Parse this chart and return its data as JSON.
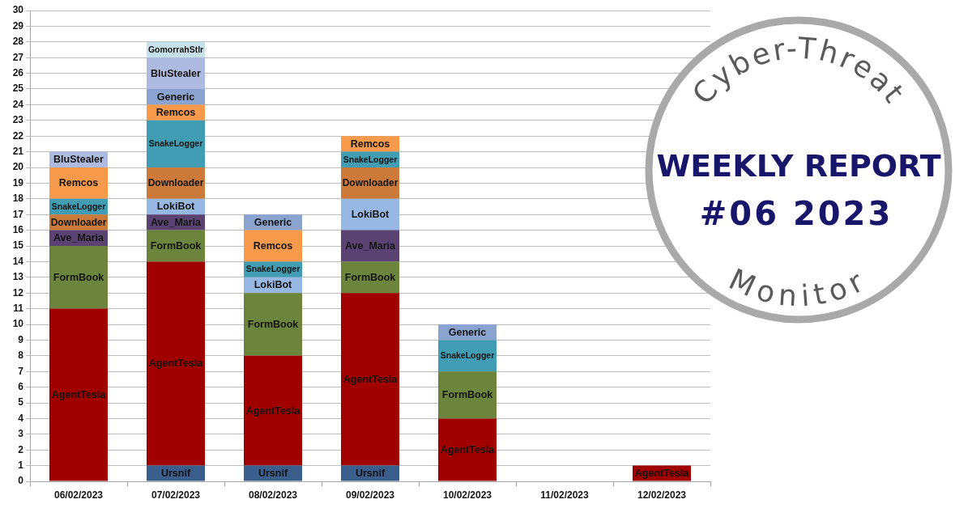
{
  "chart_data": {
    "type": "bar",
    "title": "WEEKLY REPORT",
    "subtitle": "#06 2023",
    "annotations": [
      "Cyber-Threat",
      "Monitor"
    ],
    "categories": [
      "06/02/2023",
      "07/02/2023",
      "08/02/2023",
      "09/02/2023",
      "10/02/2023",
      "11/02/2023",
      "12/02/2023"
    ],
    "stacked": true,
    "ylim": [
      0,
      30
    ],
    "yticks": [
      0,
      1,
      2,
      3,
      4,
      5,
      6,
      7,
      8,
      9,
      10,
      11,
      12,
      13,
      14,
      15,
      16,
      17,
      18,
      19,
      20,
      21,
      22,
      23,
      24,
      25,
      26,
      27,
      28,
      29,
      30
    ],
    "grid": "y",
    "legend": false,
    "series": [
      {
        "name": "Ursnif",
        "color": "#3b5e8c",
        "values": [
          null,
          1,
          1,
          1,
          null,
          null,
          null
        ]
      },
      {
        "name": "AgentTesla",
        "color": "#a00000",
        "values": [
          11,
          13,
          7,
          11,
          4,
          null,
          1
        ]
      },
      {
        "name": "FormBook",
        "color": "#6c843c",
        "values": [
          4,
          2,
          4,
          2,
          3,
          null,
          null
        ]
      },
      {
        "name": "Ave_Maria",
        "color": "#5a4272",
        "values": [
          1,
          1,
          null,
          2,
          null,
          null,
          null
        ]
      },
      {
        "name": "LokiBot",
        "color": "#98b8e4",
        "values": [
          null,
          1,
          1,
          2,
          null,
          null,
          null
        ]
      },
      {
        "name": "Downloader",
        "color": "#cc7a3a",
        "values": [
          1,
          2,
          null,
          2,
          null,
          null,
          null
        ]
      },
      {
        "name": "SnakeLogger",
        "color": "#409db4",
        "values": [
          1,
          3,
          1,
          1,
          2,
          null,
          null
        ]
      },
      {
        "name": "Remcos",
        "color": "#f79a4c",
        "values": [
          2,
          1,
          2,
          1,
          null,
          null,
          null
        ]
      },
      {
        "name": "Generic",
        "color": "#8aa3cf",
        "values": [
          null,
          1,
          1,
          null,
          1,
          null,
          null
        ]
      },
      {
        "name": "BluStealer",
        "color": "#aebadf",
        "values": [
          1,
          2,
          null,
          null,
          null,
          null,
          null
        ]
      },
      {
        "name": "GomorrahStlr",
        "color": "#c7e1ea",
        "values": [
          null,
          1,
          null,
          null,
          null,
          null,
          null
        ]
      }
    ]
  }
}
